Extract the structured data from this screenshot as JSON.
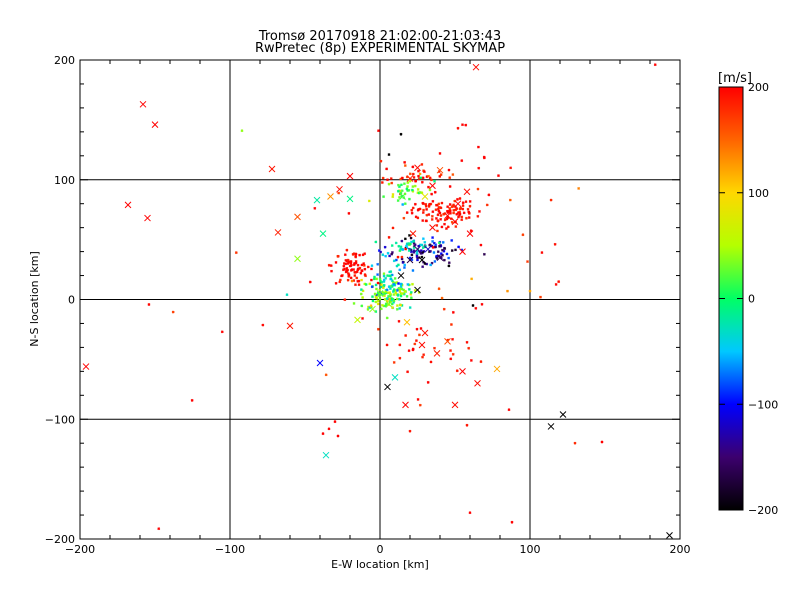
{
  "chart_data": {
    "type": "scatter",
    "title": "Tromsø 20170918 21:02:00-21:03:43",
    "subtitle": "RwPretec (8p) EXPERIMENTAL SKYMAP",
    "xlabel": "E-W location [km]",
    "ylabel": "N-S location [km]",
    "xlim": [
      -200,
      200
    ],
    "ylim": [
      -200,
      200
    ],
    "xticks": [
      "−200",
      "−100",
      "0",
      "100",
      "200"
    ],
    "xtick_values": [
      -200,
      -100,
      0,
      100,
      200
    ],
    "yticks": [
      "−200",
      "−100",
      "0",
      "100",
      "200"
    ],
    "ytick_values": [
      -200,
      -100,
      0,
      100,
      200
    ],
    "grid": true,
    "colorbar": {
      "label": "[m/s]",
      "range": [
        -200,
        200
      ],
      "ticks": [
        "200",
        "100",
        "0",
        "−100",
        "−200"
      ],
      "tick_values": [
        200,
        100,
        0,
        -100,
        -200
      ],
      "colors": [
        "#000000",
        "#3c006e",
        "#0000ff",
        "#00c8ff",
        "#00ff64",
        "#b4ff00",
        "#ffd700",
        "#ff6400",
        "#ff0000"
      ]
    },
    "cross_points": [
      [
        -158,
        163,
        200
      ],
      [
        -150,
        146,
        200
      ],
      [
        -168,
        79,
        200
      ],
      [
        -155,
        68,
        200
      ],
      [
        -72,
        109,
        190
      ],
      [
        -20,
        103,
        200
      ],
      [
        -27,
        92,
        195
      ],
      [
        -42,
        83,
        -20
      ],
      [
        -33,
        86,
        130
      ],
      [
        -20,
        84,
        -10
      ],
      [
        -68,
        56,
        185
      ],
      [
        -55,
        69,
        160
      ],
      [
        -38,
        55,
        -10
      ],
      [
        -55,
        34,
        40
      ],
      [
        -60,
        -22,
        190
      ],
      [
        -40,
        -53,
        -100
      ],
      [
        -196,
        -56,
        200
      ],
      [
        -15,
        -17,
        60
      ],
      [
        -36,
        -130,
        -30
      ],
      [
        20,
        101,
        185
      ],
      [
        25,
        110,
        195
      ],
      [
        35,
        95,
        200
      ],
      [
        40,
        108,
        160
      ],
      [
        30,
        86,
        80
      ],
      [
        15,
        86,
        20
      ],
      [
        52,
        80,
        200
      ],
      [
        58,
        90,
        195
      ],
      [
        25,
        42,
        -150
      ],
      [
        20,
        33,
        -170
      ],
      [
        28,
        33,
        -200
      ],
      [
        32,
        42,
        -120
      ],
      [
        14,
        20,
        -200
      ],
      [
        25,
        8,
        -200
      ],
      [
        6,
        -4,
        40
      ],
      [
        30,
        -28,
        190
      ],
      [
        45,
        -35,
        160
      ],
      [
        28,
        -38,
        195
      ],
      [
        38,
        -45,
        185
      ],
      [
        55,
        -60,
        200
      ],
      [
        78,
        -58,
        120
      ],
      [
        10,
        -65,
        -30
      ],
      [
        5,
        -73,
        -200
      ],
      [
        17,
        -88,
        200
      ],
      [
        50,
        -88,
        195
      ],
      [
        65,
        -70,
        195
      ],
      [
        122,
        -96,
        -200
      ],
      [
        114,
        -106,
        -200
      ],
      [
        193,
        -197,
        -200
      ],
      [
        18,
        -19,
        110
      ],
      [
        64,
        194,
        195
      ],
      [
        0,
        5,
        30
      ],
      [
        -5,
        -8,
        40
      ],
      [
        45,
        70,
        195
      ],
      [
        50,
        65,
        200
      ],
      [
        40,
        35,
        -160
      ],
      [
        55,
        40,
        200
      ],
      [
        60,
        55,
        200
      ],
      [
        35,
        60,
        195
      ],
      [
        22,
        55,
        190
      ]
    ],
    "dot_clusters": [
      {
        "name": "",
        "center": [
          42,
          73
        ],
        "spread": [
          12,
          6
        ],
        "count": 110,
        "value": 195,
        "jitter": 15
      },
      {
        "name": "",
        "center": [
          26,
          102
        ],
        "spread": [
          12,
          6
        ],
        "count": 40,
        "value": 190,
        "jitter": 20
      },
      {
        "name": "",
        "center": [
          20,
          90
        ],
        "spread": [
          8,
          5
        ],
        "count": 40,
        "value": 30,
        "jitter": 30
      },
      {
        "name": "",
        "center": [
          27,
          40
        ],
        "spread": [
          13,
          6
        ],
        "count": 100,
        "value": -140,
        "jitter": 45
      },
      {
        "name": "",
        "center": [
          20,
          45
        ],
        "spread": [
          8,
          3
        ],
        "count": 30,
        "value": -20,
        "jitter": 20
      },
      {
        "name": "",
        "center": [
          -20,
          28
        ],
        "spread": [
          6,
          7
        ],
        "count": 80,
        "value": 195,
        "jitter": 8
      },
      {
        "name": "",
        "center": [
          5,
          5
        ],
        "spread": [
          9,
          7
        ],
        "count": 140,
        "value": 20,
        "jitter": 40
      },
      {
        "name": "",
        "center": [
          8,
          15
        ],
        "spread": [
          6,
          10
        ],
        "count": 40,
        "value": -40,
        "jitter": 30
      },
      {
        "name": "",
        "center": [
          28,
          -40
        ],
        "spread": [
          18,
          14
        ],
        "count": 30,
        "value": 190,
        "jitter": 15
      },
      {
        "name": "",
        "center": [
          50,
          70
        ],
        "spread": [
          40,
          45
        ],
        "count": 35,
        "value": 190,
        "jitter": 20
      },
      {
        "name": "",
        "center": [
          0,
          0
        ],
        "spread": [
          120,
          120
        ],
        "count": 30,
        "value": 190,
        "jitter": 30
      }
    ],
    "dot_points": [
      [
        -92,
        141,
        40
      ],
      [
        -1,
        141,
        200
      ],
      [
        14,
        138,
        -200
      ],
      [
        52,
        143,
        195
      ],
      [
        55,
        146,
        200
      ],
      [
        6,
        121,
        -200
      ],
      [
        5,
        100,
        200
      ],
      [
        40,
        122,
        200
      ],
      [
        85,
        7,
        130
      ],
      [
        100,
        7,
        120
      ],
      [
        107,
        2,
        170
      ],
      [
        -62,
        4,
        -30
      ],
      [
        68,
        -4,
        200
      ],
      [
        62,
        -5,
        -200
      ],
      [
        20,
        -110,
        190
      ],
      [
        58,
        -105,
        190
      ],
      [
        130,
        -120,
        180
      ],
      [
        148,
        -119,
        200
      ],
      [
        88,
        -186,
        200
      ],
      [
        60,
        -178,
        200
      ],
      [
        -34,
        -108,
        200
      ],
      [
        -30,
        -102,
        200
      ],
      [
        -28,
        -114,
        200
      ],
      [
        -38,
        -112,
        200
      ],
      [
        86,
        -92,
        200
      ]
    ]
  }
}
